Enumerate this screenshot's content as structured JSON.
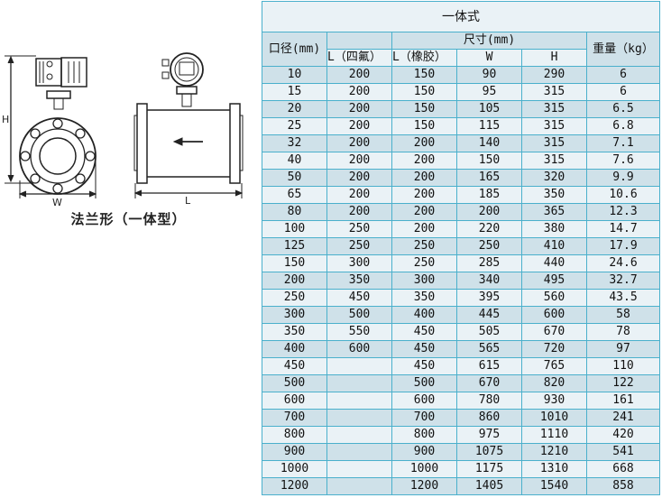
{
  "diagram": {
    "labels": {
      "h": "H",
      "w": "W",
      "l": "L"
    },
    "caption": "法兰形（一体型）"
  },
  "table": {
    "title": "一体式",
    "headers": {
      "bore": "口径(mm)",
      "size": "尺寸(mm)",
      "weight": "重量（kg）",
      "l_ptfe": "L（四氟）",
      "l_rubber": "L（橡胶）",
      "w": "W",
      "h": "H"
    },
    "rows": [
      [
        "10",
        "200",
        "150",
        "90",
        "290",
        "6"
      ],
      [
        "15",
        "200",
        "150",
        "95",
        "315",
        "6"
      ],
      [
        "20",
        "200",
        "150",
        "105",
        "315",
        "6.5"
      ],
      [
        "25",
        "200",
        "150",
        "115",
        "315",
        "6.8"
      ],
      [
        "32",
        "200",
        "200",
        "140",
        "315",
        "7.1"
      ],
      [
        "40",
        "200",
        "200",
        "150",
        "315",
        "7.6"
      ],
      [
        "50",
        "200",
        "200",
        "165",
        "320",
        "9.9"
      ],
      [
        "65",
        "200",
        "200",
        "185",
        "350",
        "10.6"
      ],
      [
        "80",
        "200",
        "200",
        "200",
        "365",
        "12.3"
      ],
      [
        "100",
        "250",
        "200",
        "220",
        "380",
        "14.7"
      ],
      [
        "125",
        "250",
        "250",
        "250",
        "410",
        "17.9"
      ],
      [
        "150",
        "300",
        "250",
        "285",
        "440",
        "24.6"
      ],
      [
        "200",
        "350",
        "300",
        "340",
        "495",
        "32.7"
      ],
      [
        "250",
        "450",
        "350",
        "395",
        "560",
        "43.5"
      ],
      [
        "300",
        "500",
        "400",
        "445",
        "600",
        "58"
      ],
      [
        "350",
        "550",
        "450",
        "505",
        "670",
        "78"
      ],
      [
        "400",
        "600",
        "450",
        "565",
        "720",
        "97"
      ],
      [
        "450",
        "",
        "450",
        "615",
        "765",
        "110"
      ],
      [
        "500",
        "",
        "500",
        "670",
        "820",
        "122"
      ],
      [
        "600",
        "",
        "600",
        "780",
        "930",
        "161"
      ],
      [
        "700",
        "",
        "700",
        "860",
        "1010",
        "241"
      ],
      [
        "800",
        "",
        "800",
        "975",
        "1110",
        "420"
      ],
      [
        "900",
        "",
        "900",
        "1075",
        "1210",
        "541"
      ],
      [
        "1000",
        "",
        "1000",
        "1175",
        "1310",
        "668"
      ],
      [
        "1200",
        "",
        "1200",
        "1405",
        "1540",
        "858"
      ]
    ]
  }
}
